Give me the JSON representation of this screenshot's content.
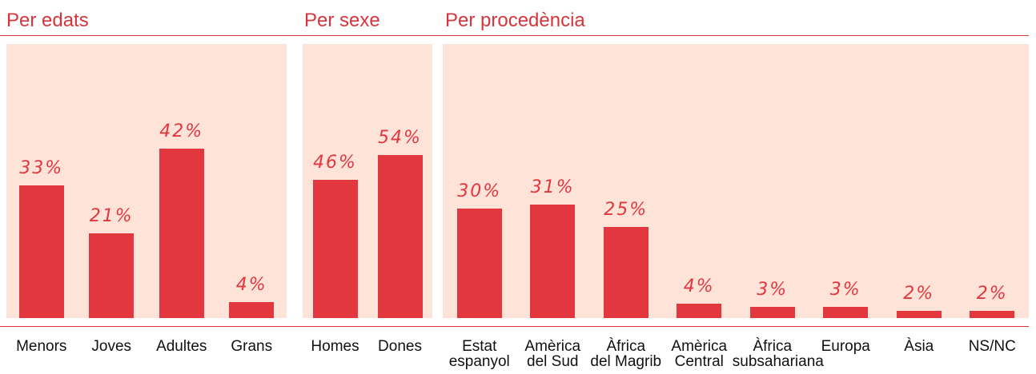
{
  "chart_data": [
    {
      "type": "bar",
      "title": "Per edats",
      "color": "#e3373f",
      "categories": [
        "Menors",
        "Joves",
        "Adultes",
        "Grans"
      ],
      "values": [
        33,
        21,
        42,
        4
      ],
      "value_labels": [
        "33%",
        "21%",
        "42%",
        "4%"
      ],
      "ylim": [
        0,
        68
      ]
    },
    {
      "type": "bar",
      "title": "Per sexe",
      "color": "#e3373f",
      "categories": [
        "Homes",
        "Dones"
      ],
      "values": [
        46,
        54
      ],
      "value_labels": [
        "46%",
        "54%"
      ],
      "ylim": [
        0,
        91
      ]
    },
    {
      "type": "bar",
      "title": "Per procedència",
      "color": "#e3373f",
      "categories": [
        "Estat\nespanyol",
        "Amèrica\ndel Sud",
        "Àfrica\ndel Magrib",
        "Amèrica\nCentral",
        "Àfrica\nsubsahariana",
        "Europa",
        "Àsia",
        "NS/NC"
      ],
      "values": [
        30,
        31,
        25,
        4,
        3,
        3,
        2,
        2
      ],
      "value_labels": [
        "30%",
        "31%",
        "25%",
        "4%",
        "3%",
        "3%",
        "2%",
        "2%"
      ],
      "ylim": [
        0,
        75
      ]
    }
  ]
}
